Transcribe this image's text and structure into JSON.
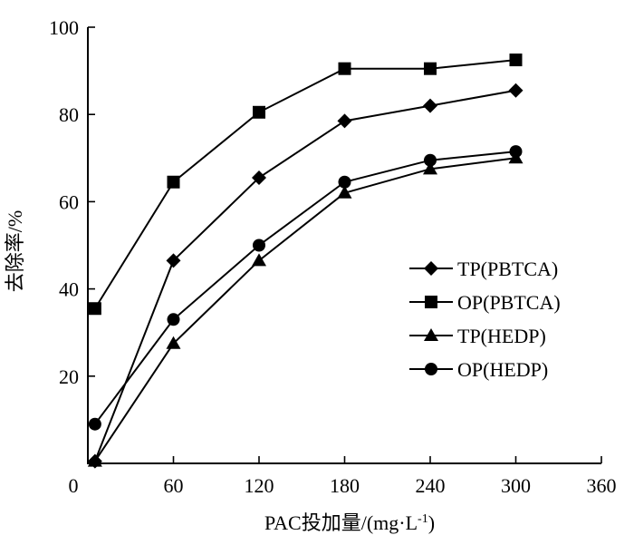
{
  "chart_data": {
    "type": "line",
    "xlabel": "PAC投加量/(mg·L",
    "xlabel_sup": "-1",
    "xlabel_tail": ")",
    "ylabel": "去除率/%",
    "xlim": [
      0,
      360
    ],
    "ylim": [
      0,
      100
    ],
    "xticks": [
      "0",
      "60",
      "120",
      "180",
      "240",
      "300",
      "360"
    ],
    "yticks": [
      "20",
      "40",
      "60",
      "80",
      "100"
    ],
    "x": [
      5,
      60,
      120,
      180,
      240,
      300
    ],
    "series": [
      {
        "name": "TP(PBTCA)",
        "marker": "diamond",
        "values": [
          0.5,
          46.5,
          65.5,
          78.5,
          82,
          85.5
        ]
      },
      {
        "name": "OP(PBTCA)",
        "marker": "square",
        "values": [
          35.5,
          64.5,
          80.5,
          90.5,
          90.5,
          92.5
        ]
      },
      {
        "name": "TP(HEDP)",
        "marker": "triangle",
        "values": [
          0.5,
          27.5,
          46.5,
          62,
          67.5,
          70
        ]
      },
      {
        "name": "OP(HEDP)",
        "marker": "circle",
        "values": [
          9,
          33,
          50,
          64.5,
          69.5,
          71.5
        ]
      }
    ],
    "legend": "right-center",
    "grid": false
  }
}
